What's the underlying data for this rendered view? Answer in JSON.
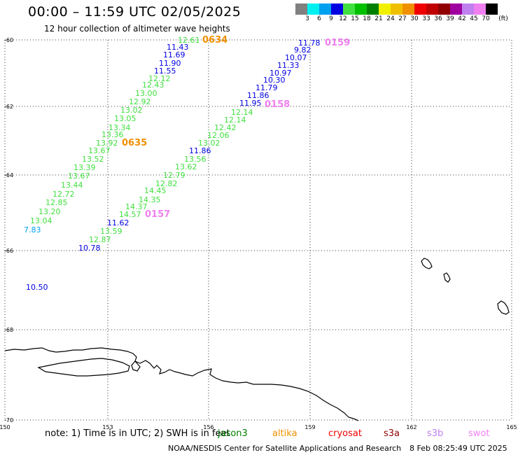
{
  "title": "00:00 – 11:59 UTC 02/05/2025",
  "subtitle": "12 hour collection of altimeter wave heights",
  "legend": {
    "unit_label": "(ft)",
    "colors": [
      "#808080",
      "#00f0f0",
      "#00a0f0",
      "#0000e0",
      "#40e040",
      "#00c000",
      "#008000",
      "#f0f000",
      "#f0c000",
      "#f09000",
      "#f00000",
      "#c00000",
      "#900000",
      "#a000a0",
      "#c080f0",
      "#f080f0",
      "#000000"
    ],
    "ticks": [
      "3",
      "6",
      "9",
      "12",
      "15",
      "18",
      "21",
      "24",
      "27",
      "30",
      "33",
      "36",
      "39",
      "42",
      "45",
      "70"
    ]
  },
  "map": {
    "lat_range": [
      -70,
      -60
    ],
    "lon_range": [
      150,
      165
    ],
    "lat_labels": [
      "-60",
      "-62",
      "-64",
      "-66",
      "-68",
      "-70"
    ],
    "lon_labels": [
      "150",
      "153",
      "156",
      "159",
      "162",
      "165"
    ],
    "gridline_style": "dotted",
    "tracks": [
      {
        "pass": "0634",
        "pass_color": "#f09000",
        "obs": [
          {
            "v": "12.61",
            "c": "#40e040"
          },
          {
            "v": "11.43",
            "c": "#0000e0"
          },
          {
            "v": "11.69",
            "c": "#0000e0"
          },
          {
            "v": "11.90",
            "c": "#0000e0"
          },
          {
            "v": "11.55",
            "c": "#0000e0"
          },
          {
            "v": "12.12",
            "c": "#40e040"
          },
          {
            "v": "12.43",
            "c": "#40e040"
          },
          {
            "v": "13.00",
            "c": "#40e040"
          },
          {
            "v": "12.92",
            "c": "#40e040"
          }
        ]
      },
      {
        "pass": "0635",
        "pass_color": "#f09000",
        "obs": [
          {
            "v": "13.02",
            "c": "#40e040"
          },
          {
            "v": "13.05",
            "c": "#40e040"
          },
          {
            "v": "13.34",
            "c": "#40e040"
          },
          {
            "v": "13.36",
            "c": "#40e040"
          },
          {
            "v": "13.92",
            "c": "#40e040"
          },
          {
            "v": "13.67",
            "c": "#40e040"
          },
          {
            "v": "13.52",
            "c": "#40e040"
          },
          {
            "v": "13.39",
            "c": "#40e040"
          },
          {
            "v": "13.67",
            "c": "#40e040"
          },
          {
            "v": "13.44",
            "c": "#40e040"
          },
          {
            "v": "12.72",
            "c": "#40e040"
          },
          {
            "v": "12.85",
            "c": "#40e040"
          },
          {
            "v": "13.20",
            "c": "#40e040"
          },
          {
            "v": "13.04",
            "c": "#40e040"
          },
          {
            "v": "7.83",
            "c": "#00a0f0"
          }
        ]
      },
      {
        "pass": "0159",
        "pass_color": "#f080f0",
        "obs": [
          {
            "v": "11.78",
            "c": "#0000e0"
          },
          {
            "v": "9.82",
            "c": "#0000e0"
          },
          {
            "v": "10.07",
            "c": "#0000e0"
          },
          {
            "v": "11.33",
            "c": "#0000e0"
          },
          {
            "v": "10.97",
            "c": "#0000e0"
          },
          {
            "v": "10.30",
            "c": "#0000e0"
          },
          {
            "v": "11.79",
            "c": "#0000e0"
          },
          {
            "v": "11.86",
            "c": "#0000e0"
          },
          {
            "v": "11.95",
            "c": "#0000e0"
          }
        ]
      },
      {
        "pass": "0158",
        "pass_color": "#f080f0",
        "obs": [
          {
            "v": "12.14",
            "c": "#40e040"
          },
          {
            "v": "12.14",
            "c": "#40e040"
          },
          {
            "v": "12.42",
            "c": "#40e040"
          },
          {
            "v": "12.06",
            "c": "#40e040"
          },
          {
            "v": "13.02",
            "c": "#40e040"
          },
          {
            "v": "11.86",
            "c": "#0000e0"
          },
          {
            "v": "13.56",
            "c": "#40e040"
          },
          {
            "v": "13.62",
            "c": "#40e040"
          },
          {
            "v": "12.79",
            "c": "#40e040"
          },
          {
            "v": "12.82",
            "c": "#40e040"
          },
          {
            "v": "14.45",
            "c": "#40e040"
          },
          {
            "v": "14.35",
            "c": "#40e040"
          },
          {
            "v": "14.37",
            "c": "#40e040"
          },
          {
            "v": "14.57",
            "c": "#40e040"
          },
          {
            "v": "11.62",
            "c": "#0000e0"
          },
          {
            "v": "13.59",
            "c": "#40e040"
          },
          {
            "v": "12.87",
            "c": "#40e040"
          },
          {
            "v": "10.78",
            "c": "#0000e0"
          }
        ]
      },
      {
        "pass": "0157",
        "pass_color": "#f080f0",
        "obs": []
      },
      {
        "pass": "",
        "pass_color": "",
        "obs": [
          {
            "v": "10.50",
            "c": "#0000e0"
          }
        ]
      }
    ]
  },
  "footer": {
    "note": "note: 1) Time is in UTC; 2) SWH is in feet",
    "satellites": [
      {
        "name": "jason3",
        "color": "#008000"
      },
      {
        "name": "altika",
        "color": "#f09000"
      },
      {
        "name": "cryosat",
        "color": "#f00000"
      },
      {
        "name": "s3a",
        "color": "#900000"
      },
      {
        "name": "s3b",
        "color": "#c080f0"
      },
      {
        "name": "swot",
        "color": "#f080f0"
      }
    ],
    "credit": "NOAA/NESDIS Center for Satellite Applications and Research",
    "timestamp": "8 Feb 08:25:49 UTC 2025"
  }
}
